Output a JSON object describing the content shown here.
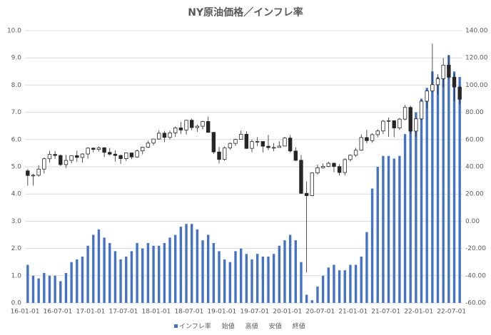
{
  "chart_data": {
    "type": "combo",
    "title": "NY原油価格／インフレ率",
    "categories": [
      "16-01-01",
      null,
      null,
      null,
      null,
      null,
      "16-07-01",
      null,
      null,
      null,
      null,
      null,
      "17-01-01",
      null,
      null,
      null,
      null,
      null,
      "17-07-01",
      null,
      null,
      null,
      null,
      null,
      "18-01-01",
      null,
      null,
      null,
      null,
      null,
      "18-07-01",
      null,
      null,
      null,
      null,
      null,
      "19-01-01",
      null,
      null,
      null,
      null,
      null,
      "19-07-01",
      null,
      null,
      null,
      null,
      null,
      "20-01-01",
      null,
      null,
      null,
      null,
      null,
      "20-07-01",
      null,
      null,
      null,
      null,
      null,
      "21-01-01",
      null,
      null,
      null,
      null,
      null,
      "21-07-01",
      null,
      null,
      null,
      null,
      null,
      "22-01-01",
      null,
      null,
      null,
      null,
      null,
      "22-07-01",
      null
    ],
    "series": [
      {
        "name": "インフレ率",
        "type": "bar",
        "color": "#4472c4",
        "values": [
          1.4,
          1.0,
          0.9,
          1.1,
          1.0,
          1.0,
          0.8,
          1.1,
          1.5,
          1.6,
          1.7,
          2.1,
          2.5,
          2.7,
          2.4,
          2.2,
          1.9,
          1.6,
          1.7,
          1.9,
          2.2,
          2.0,
          2.2,
          2.1,
          2.1,
          2.2,
          2.4,
          2.5,
          2.8,
          2.9,
          2.9,
          2.7,
          2.3,
          2.5,
          2.2,
          1.9,
          1.6,
          1.5,
          1.9,
          2.0,
          1.8,
          1.6,
          1.8,
          1.7,
          1.7,
          1.8,
          2.1,
          2.3,
          2.5,
          2.3,
          1.5,
          0.3,
          0.1,
          0.6,
          1.0,
          1.3,
          1.4,
          1.2,
          1.2,
          1.4,
          1.4,
          1.7,
          2.6,
          4.2,
          5.0,
          5.4,
          5.4,
          5.3,
          5.4,
          6.2,
          6.8,
          7.0,
          7.5,
          7.9,
          8.5,
          8.3,
          8.6,
          9.1,
          8.5,
          8.3
        ]
      },
      {
        "name": "始値",
        "type": "candlestick",
        "role": "open",
        "axis": "y2",
        "values": [
          37.0,
          33.6,
          33.8,
          38.3,
          45.9,
          49.1,
          48.3,
          41.6,
          44.7,
          48.2,
          46.9,
          49.4,
          53.7,
          52.8,
          54.0,
          50.6,
          49.3,
          48.3,
          46.0,
          50.2,
          47.2,
          51.7,
          54.4,
          57.4,
          60.4,
          64.7,
          61.6,
          64.9,
          68.6,
          67.0,
          74.2,
          68.8,
          69.8,
          73.3,
          65.3,
          50.9,
          45.4,
          53.8,
          57.2,
          60.1,
          63.9,
          53.5,
          58.5,
          58.6,
          55.1,
          54.1,
          54.2,
          55.2,
          61.1,
          51.6,
          44.8,
          20.5,
          18.8,
          35.5,
          39.3,
          40.3,
          42.6,
          40.2,
          35.8,
          45.3,
          48.5,
          52.2,
          61.5,
          59.2,
          63.6,
          66.3,
          73.5,
          73.9,
          68.5,
          75.0,
          83.6,
          66.2,
          75.2,
          88.2,
          95.7,
          100.3,
          104.7,
          114.7,
          105.8,
          98.6
        ]
      },
      {
        "name": "高値",
        "type": "candlestick",
        "role": "high",
        "axis": "y2",
        "values": [
          38.4,
          34.8,
          41.2,
          46.8,
          51.7,
          51.7,
          49.0,
          48.8,
          48.4,
          51.9,
          49.9,
          54.5,
          54.2,
          54.9,
          54.5,
          53.8,
          52.0,
          49.0,
          50.4,
          50.2,
          52.8,
          54.8,
          59.1,
          60.5,
          66.7,
          66.4,
          66.6,
          69.6,
          72.9,
          74.5,
          75.3,
          70.9,
          73.9,
          76.9,
          65.2,
          54.6,
          55.0,
          57.8,
          60.7,
          66.6,
          66.0,
          59.9,
          61.8,
          58.8,
          63.4,
          57.4,
          58.7,
          61.9,
          63.3,
          54.2,
          48.7,
          29.1,
          35.8,
          41.6,
          42.5,
          43.8,
          43.3,
          41.8,
          46.3,
          49.1,
          53.9,
          63.8,
          67.1,
          64.7,
          67.6,
          74.5,
          76.1,
          71.0,
          75.9,
          85.4,
          84.9,
          75.7,
          88.8,
          96.0,
          130.5,
          108.1,
          119.9,
          122.1,
          108.6,
          99.2
        ]
      },
      {
        "name": "安値",
        "type": "candlestick",
        "role": "low",
        "axis": "y2",
        "values": [
          26.1,
          26.1,
          32.7,
          35.2,
          43.0,
          45.8,
          40.6,
          39.2,
          42.5,
          43.6,
          43.0,
          45.9,
          50.7,
          51.2,
          47.1,
          48.2,
          43.8,
          42.1,
          44.3,
          45.6,
          46.5,
          49.1,
          53.9,
          55.8,
          59.9,
          58.1,
          60.0,
          61.8,
          64.2,
          63.6,
          66.9,
          65.7,
          67.4,
          64.9,
          49.4,
          42.4,
          44.4,
          52.5,
          55.3,
          60.3,
          53.0,
          50.6,
          55.1,
          50.5,
          52.2,
          51.3,
          54.9,
          55.3,
          50.5,
          44.0,
          20.1,
          -37.6,
          18.5,
          34.4,
          38.7,
          39.9,
          36.1,
          33.6,
          33.6,
          44.0,
          47.2,
          51.6,
          57.3,
          57.6,
          61.6,
          64.0,
          62.0,
          61.7,
          67.0,
          74.2,
          64.4,
          62.4,
          74.3,
          83.0,
          95.0,
          92.9,
          98.2,
          104.6,
          88.2,
          86.0
        ]
      },
      {
        "name": "終値",
        "type": "candlestick",
        "role": "close",
        "axis": "y2",
        "values": [
          33.6,
          33.8,
          38.3,
          45.9,
          49.1,
          48.3,
          41.6,
          44.7,
          48.2,
          46.9,
          49.4,
          53.7,
          52.8,
          54.0,
          50.6,
          49.3,
          48.3,
          46.0,
          50.2,
          47.2,
          51.7,
          54.4,
          57.4,
          60.4,
          64.7,
          61.6,
          64.9,
          68.6,
          67.0,
          74.2,
          68.8,
          69.8,
          73.3,
          65.3,
          50.9,
          45.4,
          53.8,
          57.2,
          60.1,
          63.9,
          53.5,
          58.5,
          58.6,
          55.1,
          54.1,
          54.2,
          55.2,
          61.1,
          51.6,
          44.8,
          20.5,
          18.8,
          35.5,
          39.3,
          40.3,
          42.6,
          40.2,
          35.8,
          45.3,
          48.5,
          52.2,
          61.5,
          59.2,
          63.6,
          66.3,
          73.5,
          73.9,
          68.5,
          75.0,
          83.6,
          66.2,
          75.2,
          88.2,
          95.7,
          100.3,
          104.7,
          114.7,
          105.8,
          98.6,
          89.6
        ]
      }
    ],
    "ylim": [
      0,
      10
    ],
    "yticks": [
      {
        "value": 0,
        "label": "0.0"
      },
      {
        "value": 1,
        "label": "1.0"
      },
      {
        "value": 2,
        "label": "2.0"
      },
      {
        "value": 3,
        "label": "3.0"
      },
      {
        "value": 4,
        "label": "4.0"
      },
      {
        "value": 5,
        "label": "5.0"
      },
      {
        "value": 6,
        "label": "6.0"
      },
      {
        "value": 7,
        "label": "7.0"
      },
      {
        "value": 8,
        "label": "8.0"
      },
      {
        "value": 9,
        "label": "9.0"
      },
      {
        "value": 10,
        "label": "10.0"
      }
    ],
    "y2lim": [
      -60,
      140
    ],
    "y2ticks": [
      {
        "value": -60,
        "label": "-60.00"
      },
      {
        "value": -40,
        "label": "-40.00"
      },
      {
        "value": -20,
        "label": "-20.00"
      },
      {
        "value": 0,
        "label": "0.00"
      },
      {
        "value": 20,
        "label": "20.00"
      },
      {
        "value": 40,
        "label": "40.00"
      },
      {
        "value": 60,
        "label": "60.00"
      },
      {
        "value": 80,
        "label": "80.00"
      },
      {
        "value": 100,
        "label": "100.00"
      },
      {
        "value": 120,
        "label": "120.00"
      },
      {
        "value": 140,
        "label": "140.00"
      }
    ],
    "grid": true,
    "legend": "bottom",
    "up_color": "#ffffff",
    "down_color": "#262626",
    "candle_line_color": "#262626"
  }
}
